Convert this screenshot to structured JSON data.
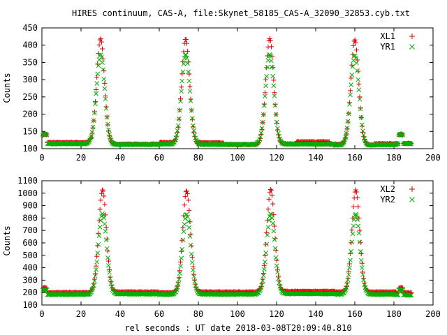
{
  "title": "HIRES continuum, CAS-A, file:Skynet_58185_CAS-A_32090_32853.cyb.txt",
  "xlabel": "rel seconds : UT date 2018-03-08T20:09:40.810",
  "colors": {
    "red": "#e00000",
    "green": "#00b000",
    "axis": "#000000"
  },
  "chart_data": [
    {
      "type": "scatter",
      "ylabel": "Counts",
      "xlim": [
        0,
        200
      ],
      "ylim": [
        100,
        450
      ],
      "x_ticks": [
        0,
        20,
        40,
        60,
        80,
        100,
        120,
        140,
        160,
        180,
        200
      ],
      "y_ticks": [
        100,
        150,
        200,
        250,
        300,
        350,
        400,
        450
      ],
      "legend": "top-right",
      "x_range": [
        0.5,
        189
      ],
      "peak_times": [
        30,
        73.5,
        116.5,
        160
      ],
      "edge_bumps": [
        1.5,
        183.5
      ],
      "series": [
        {
          "name": "XL1",
          "marker": "plus",
          "color": "#e00000",
          "baseline": 115,
          "baseline_segments": [
            [
              0,
              25,
              118
            ],
            [
              25,
              37,
              114
            ],
            [
              37,
              60,
              113
            ],
            [
              60,
              68,
              118
            ],
            [
              68,
              80,
              113
            ],
            [
              80,
              93,
              117
            ],
            [
              93,
              112,
              112
            ],
            [
              112,
              130,
              114
            ],
            [
              130,
              147,
              120
            ],
            [
              147,
              156,
              113
            ],
            [
              156,
              170,
              111
            ],
            [
              170,
              181,
              114
            ],
            [
              181,
              189,
              115
            ]
          ],
          "peak": 420,
          "peak_width": 2.0,
          "bump": 143
        },
        {
          "name": "YR1",
          "marker": "cross",
          "color": "#00b000",
          "baseline": 112,
          "baseline_segments": [
            [
              0,
              25,
              114
            ],
            [
              25,
              60,
              112
            ],
            [
              60,
              80,
              113
            ],
            [
              80,
              110,
              112
            ],
            [
              110,
              150,
              113
            ],
            [
              150,
              170,
              110
            ],
            [
              170,
              181,
              111
            ],
            [
              181,
              189,
              114
            ]
          ],
          "peak": 372,
          "peak_width": 2.15,
          "bump": 143
        }
      ]
    },
    {
      "type": "scatter",
      "ylabel": "Counts",
      "xlim": [
        0,
        200
      ],
      "ylim": [
        100,
        1100
      ],
      "x_ticks": [
        0,
        20,
        40,
        60,
        80,
        100,
        120,
        140,
        160,
        180,
        200
      ],
      "y_ticks": [
        100,
        200,
        300,
        400,
        500,
        600,
        700,
        800,
        900,
        1000,
        1100
      ],
      "legend": "top-right",
      "x_range": [
        0.5,
        189
      ],
      "peak_times": [
        31,
        74,
        117,
        160.5
      ],
      "edge_bumps": [
        1.5,
        183.5
      ],
      "series": [
        {
          "name": "XL2",
          "marker": "plus",
          "color": "#e00000",
          "baseline": 200,
          "baseline_segments": [
            [
              0,
              25,
              200
            ],
            [
              25,
              60,
              205
            ],
            [
              60,
              80,
              200
            ],
            [
              80,
              110,
              205
            ],
            [
              110,
              150,
              210
            ],
            [
              150,
              181,
              205
            ],
            [
              181,
              189,
              198
            ]
          ],
          "peak": 1020,
          "peak_width": 2.0,
          "bump": 240
        },
        {
          "name": "YR2",
          "marker": "cross",
          "color": "#00b000",
          "baseline": 185,
          "baseline_segments": [
            [
              0,
              25,
              185
            ],
            [
              25,
              60,
              188
            ],
            [
              60,
              80,
              184
            ],
            [
              80,
              110,
              186
            ],
            [
              110,
              150,
              190
            ],
            [
              150,
              181,
              186
            ],
            [
              181,
              189,
              180
            ]
          ],
          "peak": 830,
          "peak_width": 2.15,
          "bump": 222
        }
      ]
    }
  ]
}
